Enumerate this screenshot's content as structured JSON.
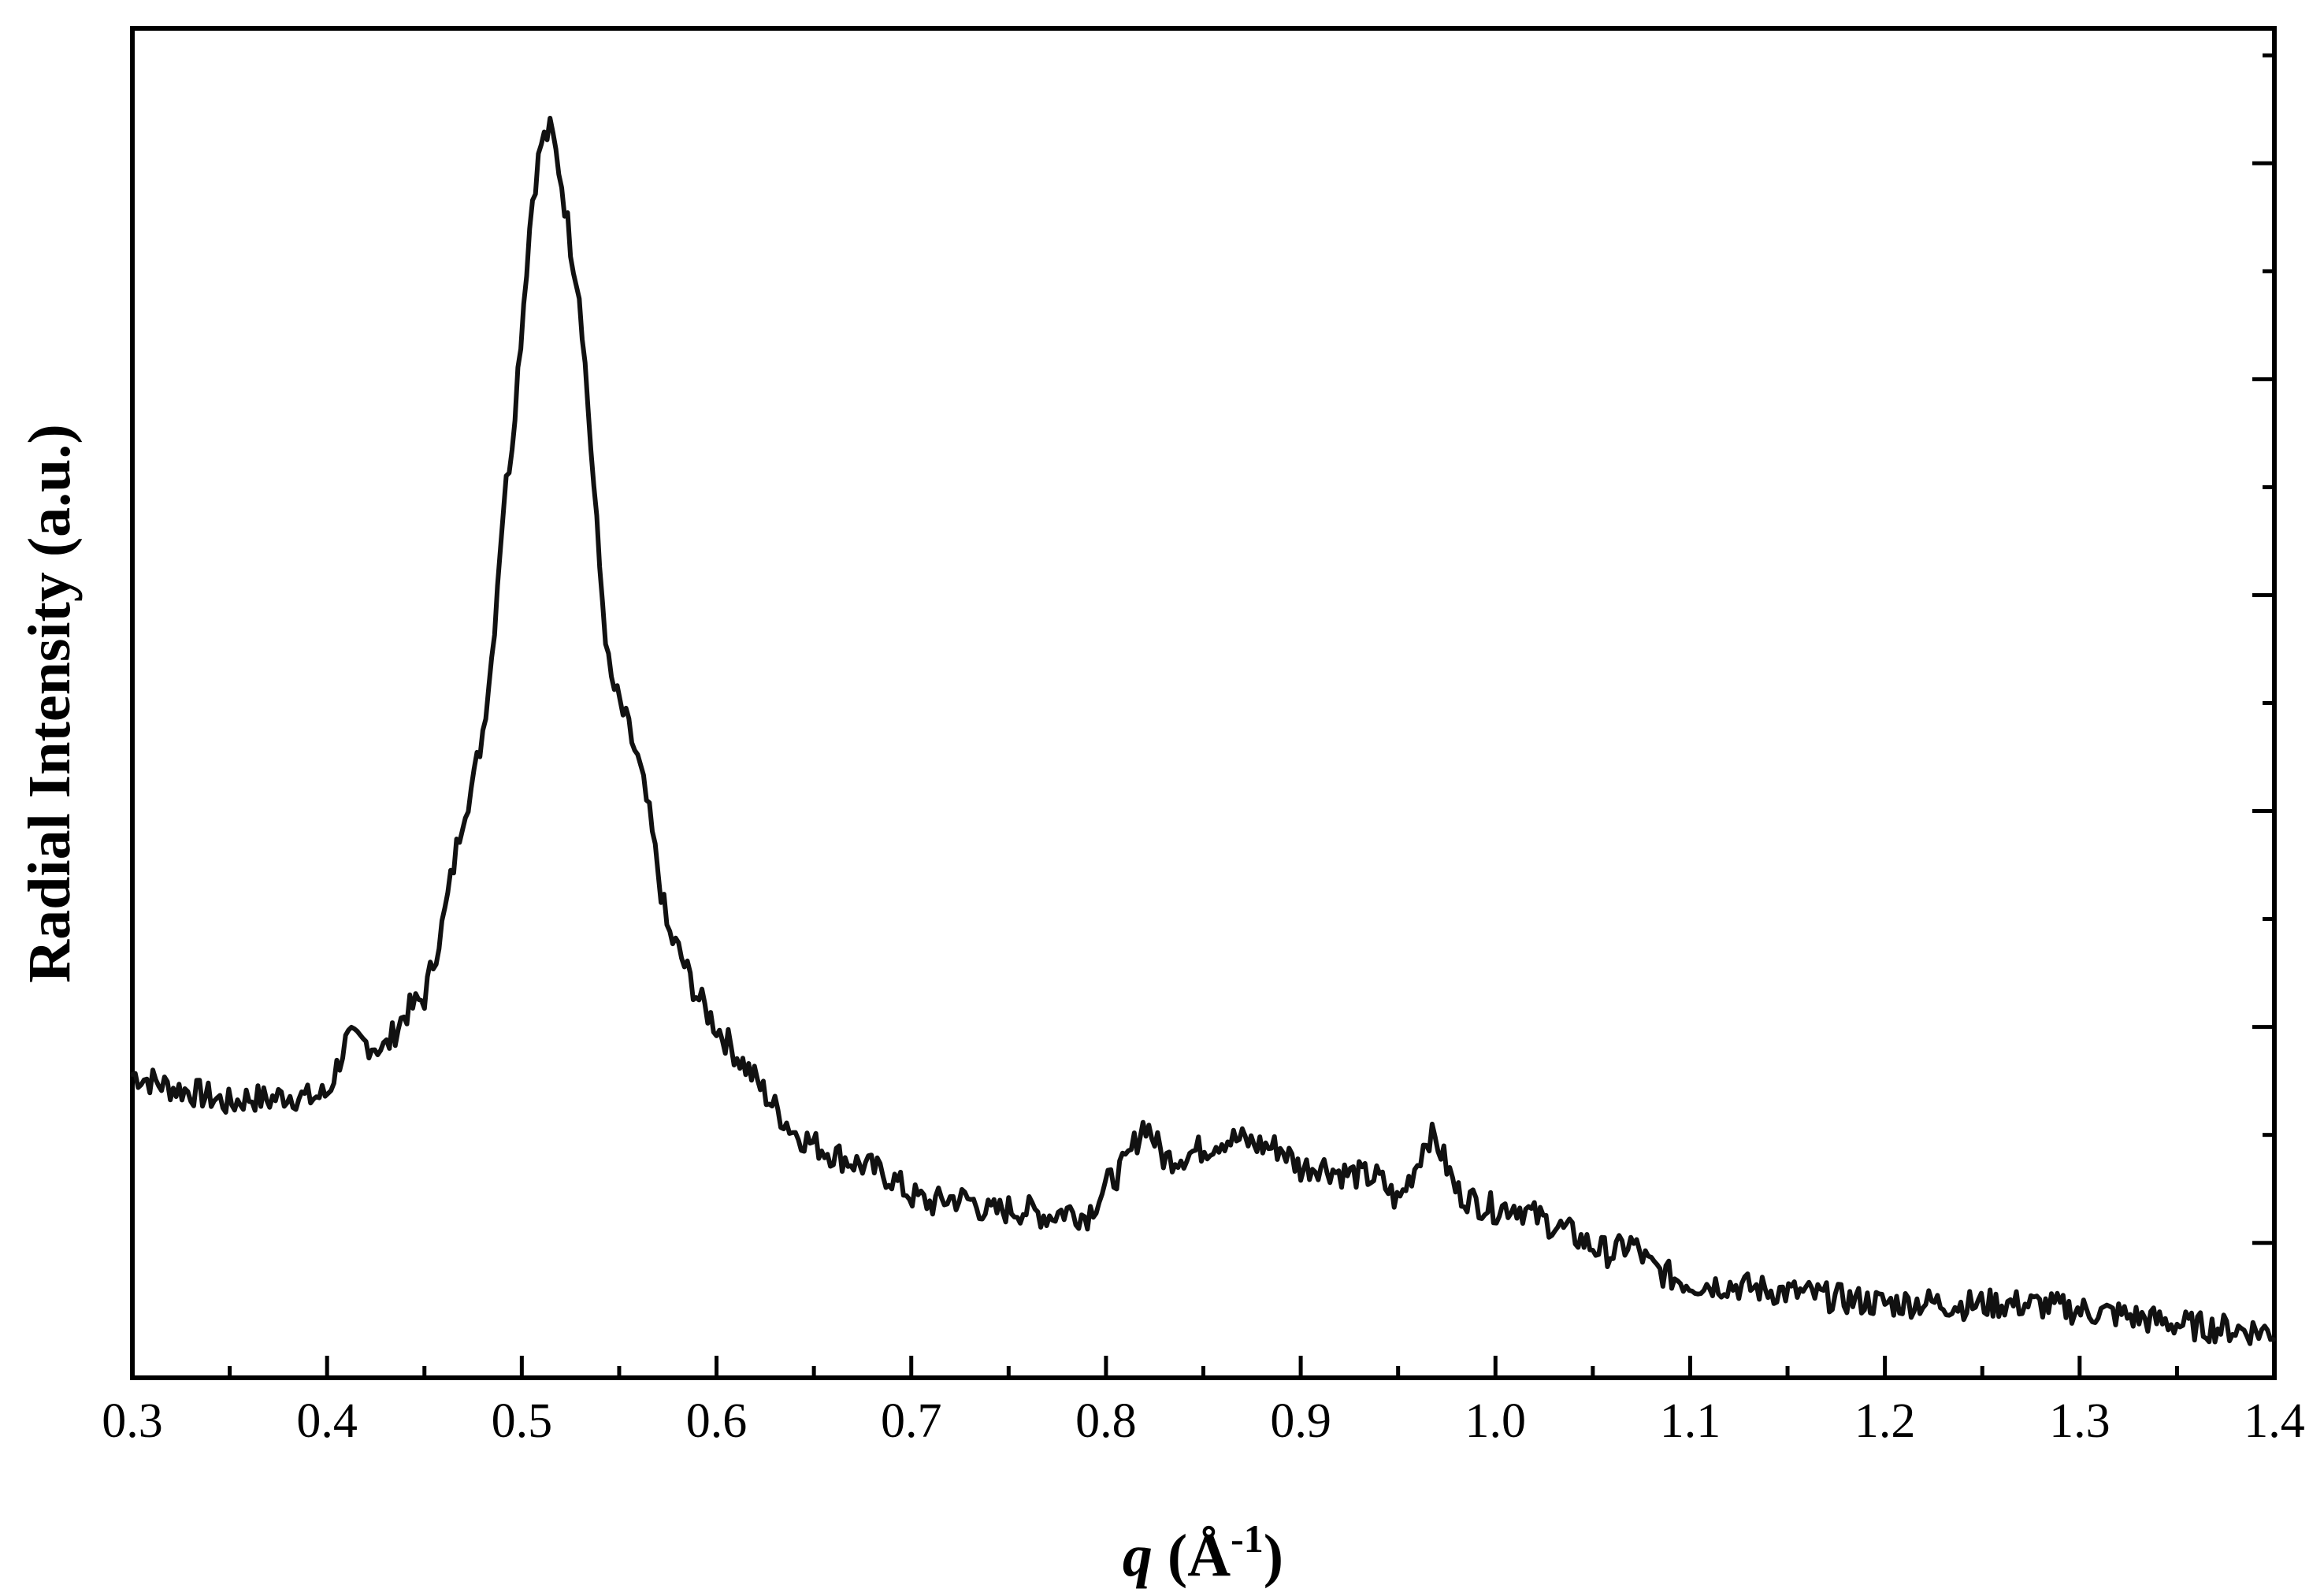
{
  "chart_data": {
    "type": "line",
    "title": "",
    "xlabel": {
      "symbol": "q",
      "unit_open": " (Å",
      "unit_exp": "-1",
      "unit_close": ")"
    },
    "ylabel": "Radial Intensity (a.u.)",
    "xlim": [
      0.3,
      1.4
    ],
    "ylim": [
      0,
      1
    ],
    "x_ticks": [
      "0.3",
      "0.4",
      "0.5",
      "0.6",
      "0.7",
      "0.8",
      "0.9",
      "1.0",
      "1.1",
      "1.2",
      "1.3",
      "1.4"
    ],
    "y_tick_labels_shown": false,
    "grid": false,
    "line_color": "#111111",
    "series": [
      {
        "name": "Radial Intensity",
        "x": [
          0.3,
          0.31,
          0.32,
          0.33,
          0.34,
          0.35,
          0.36,
          0.37,
          0.38,
          0.39,
          0.4,
          0.41,
          0.42,
          0.43,
          0.44,
          0.45,
          0.46,
          0.47,
          0.475,
          0.48,
          0.485,
          0.49,
          0.495,
          0.5,
          0.505,
          0.51,
          0.515,
          0.52,
          0.525,
          0.53,
          0.535,
          0.54,
          0.545,
          0.55,
          0.555,
          0.56,
          0.565,
          0.57,
          0.575,
          0.58,
          0.59,
          0.6,
          0.61,
          0.62,
          0.63,
          0.64,
          0.65,
          0.66,
          0.67,
          0.68,
          0.69,
          0.7,
          0.71,
          0.72,
          0.73,
          0.74,
          0.75,
          0.76,
          0.77,
          0.78,
          0.79,
          0.8,
          0.81,
          0.82,
          0.83,
          0.84,
          0.85,
          0.86,
          0.87,
          0.88,
          0.89,
          0.9,
          0.91,
          0.92,
          0.93,
          0.94,
          0.95,
          0.96,
          0.965,
          0.97,
          0.98,
          0.99,
          1.0,
          1.01,
          1.02,
          1.03,
          1.04,
          1.05,
          1.06,
          1.07,
          1.08,
          1.09,
          1.1,
          1.12,
          1.14,
          1.16,
          1.18,
          1.2,
          1.22,
          1.24,
          1.26,
          1.28,
          1.3,
          1.32,
          1.34,
          1.36,
          1.38,
          1.4
        ],
        "y": [
          0.225,
          0.22,
          0.215,
          0.212,
          0.208,
          0.203,
          0.208,
          0.206,
          0.21,
          0.207,
          0.21,
          0.25,
          0.248,
          0.244,
          0.27,
          0.282,
          0.34,
          0.42,
          0.44,
          0.48,
          0.54,
          0.64,
          0.695,
          0.78,
          0.87,
          0.915,
          0.925,
          0.89,
          0.84,
          0.8,
          0.7,
          0.6,
          0.52,
          0.5,
          0.48,
          0.455,
          0.42,
          0.375,
          0.33,
          0.318,
          0.283,
          0.26,
          0.24,
          0.221,
          0.2,
          0.182,
          0.173,
          0.166,
          0.16,
          0.155,
          0.148,
          0.135,
          0.129,
          0.133,
          0.132,
          0.122,
          0.125,
          0.124,
          0.12,
          0.124,
          0.12,
          0.142,
          0.158,
          0.19,
          0.162,
          0.165,
          0.17,
          0.177,
          0.176,
          0.172,
          0.17,
          0.155,
          0.158,
          0.152,
          0.15,
          0.148,
          0.13,
          0.16,
          0.18,
          0.175,
          0.138,
          0.13,
          0.125,
          0.128,
          0.12,
          0.113,
          0.106,
          0.097,
          0.092,
          0.1,
          0.082,
          0.075,
          0.07,
          0.069,
          0.065,
          0.062,
          0.058,
          0.055,
          0.056,
          0.054,
          0.055,
          0.054,
          0.05,
          0.047,
          0.042,
          0.038,
          0.036,
          0.034
        ]
      }
    ]
  }
}
